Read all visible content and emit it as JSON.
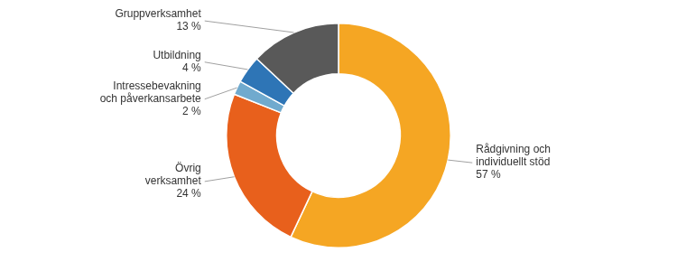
{
  "chart_data": {
    "type": "doughnut",
    "categories": [
      "Rådgivning och\nindividuellt stöd\n57 %",
      "Övrig\nverksamhet\n24 %",
      "Intressebevakning\noch påverkansarbete\n2 %",
      "Utbildning\n4 %",
      "Gruppverksamhet\n13 %"
    ],
    "values": [
      57,
      24,
      2,
      4,
      13
    ],
    "colors": [
      "#F5A623",
      "#E8601C",
      "#70AACE",
      "#2E75B6",
      "#595959"
    ]
  }
}
